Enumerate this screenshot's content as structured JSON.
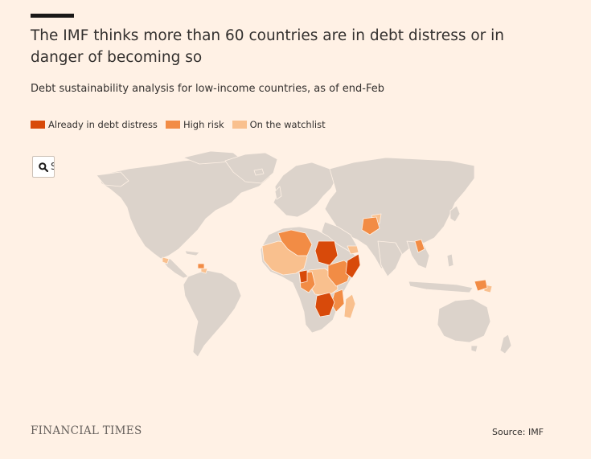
{
  "header": {
    "title": "The IMF thinks more than 60 countries are in debt distress or in danger of becoming so",
    "subtitle": "Debt sustainability analysis for low-income countries, as of end-Feb"
  },
  "legend": [
    {
      "label": "Already in debt distress",
      "color": "#d84a0a"
    },
    {
      "label": "High risk",
      "color": "#f28c45"
    },
    {
      "label": "On the watchlist",
      "color": "#f9c08e"
    }
  ],
  "search": {
    "icon": "search-icon",
    "visible_text": "S"
  },
  "colors": {
    "background": "#fff1e5",
    "land": "#dcd3cb",
    "border": "#fff1e5"
  },
  "footer": {
    "brand": "FINANCIAL TIMES",
    "source": "Source: IMF"
  }
}
